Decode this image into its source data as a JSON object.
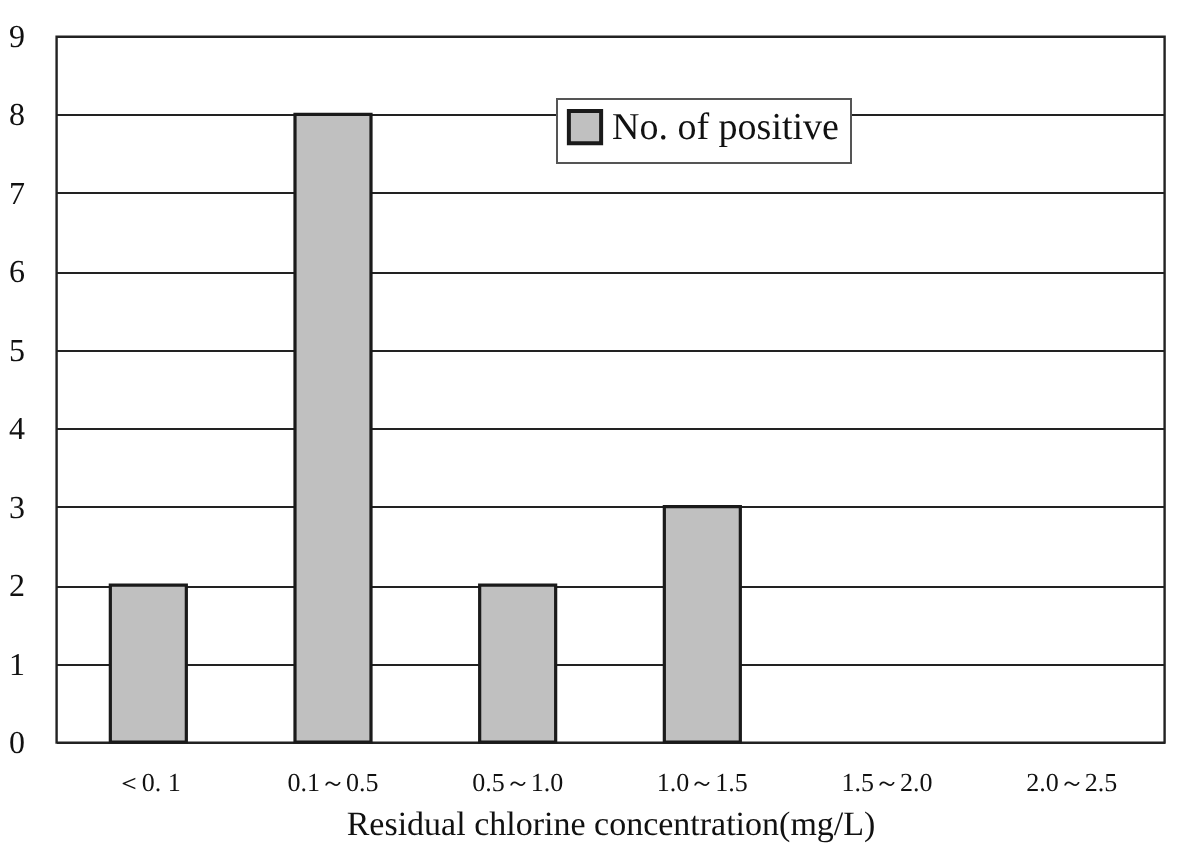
{
  "chart_data": {
    "type": "bar",
    "xlabel": "Residual chlorine concentration(mg/L)",
    "categories": [
      "＜0. 1",
      "0.1～0.5",
      "0.5～1.0",
      "1.0～1.5",
      "1.5～2.0",
      "2.0～2.5"
    ],
    "series": [
      {
        "name": "No. of positive",
        "color": "#c0c0c0",
        "values": [
          2,
          8,
          2,
          3,
          0,
          0
        ]
      }
    ],
    "ylim": [
      0,
      9
    ],
    "yticks": [
      0,
      1,
      2,
      3,
      4,
      5,
      6,
      7,
      8,
      9
    ],
    "grid": "y",
    "legend": "top right"
  }
}
